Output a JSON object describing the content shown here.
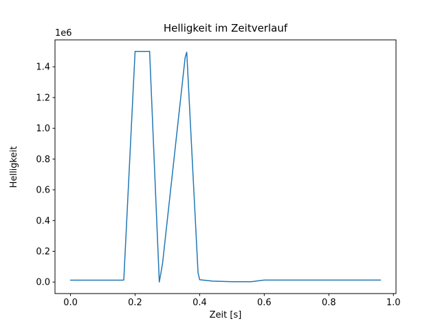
{
  "figure": {
    "background": "#ffffff",
    "axes_color": "#000000",
    "line_color": "#1f77b4"
  },
  "chart_data": {
    "type": "line",
    "title": "Helligkeit im Zeitverlauf",
    "xlabel": "Zeit [s]",
    "ylabel": "Helligkeit",
    "offset_text": "1e6",
    "grid": false,
    "legend": null,
    "xlim": [
      -0.048,
      1.008
    ],
    "ylim": [
      -75000,
      1575000
    ],
    "xticks": [
      0.0,
      0.2,
      0.4,
      0.6,
      0.8,
      1.0
    ],
    "xtick_labels": [
      "0.0",
      "0.2",
      "0.4",
      "0.6",
      "0.8",
      "1.0"
    ],
    "yticks": [
      0,
      200000,
      400000,
      600000,
      800000,
      1000000,
      1200000,
      1400000
    ],
    "ytick_labels": [
      "0.0",
      "0.2",
      "0.4",
      "0.6",
      "0.8",
      "1.0",
      "1.2",
      "1.4"
    ],
    "series": [
      {
        "name": "Helligkeit",
        "x": [
          0.0,
          0.16,
          0.165,
          0.2,
          0.245,
          0.275,
          0.285,
          0.355,
          0.36,
          0.395,
          0.4,
          0.44,
          0.5,
          0.56,
          0.6,
          0.96
        ],
        "y": [
          12000,
          12000,
          13000,
          1500000,
          1500000,
          0,
          120000,
          1460000,
          1495000,
          60000,
          15000,
          6000,
          2000,
          2000,
          13000,
          13000
        ]
      }
    ]
  }
}
